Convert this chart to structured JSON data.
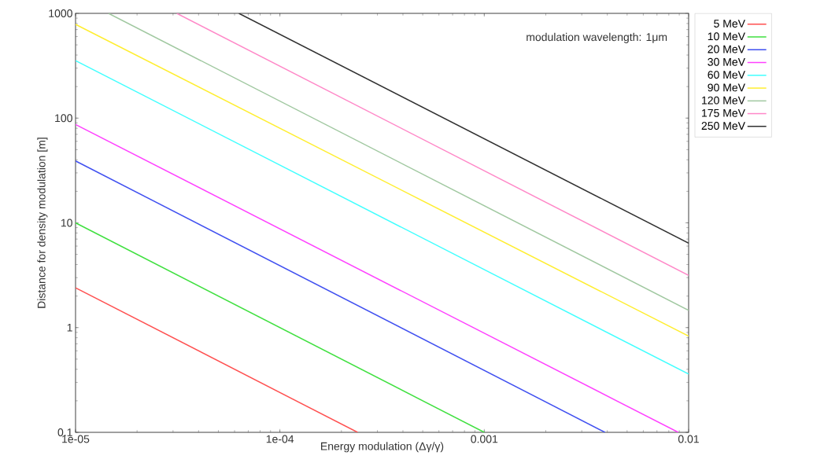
{
  "chart_data": {
    "type": "line",
    "xlabel": "Energy modulation (Δγ/γ)",
    "ylabel": "Distance for density modulation [m]",
    "annotations": [
      "modulation wavelength: 1μm"
    ],
    "log": "xy",
    "xlim": [
      1e-05,
      0.01
    ],
    "ylim": [
      0.1,
      1000
    ],
    "xticks": [
      {
        "value": 1e-05,
        "label": "1e-05"
      },
      {
        "value": 0.0001,
        "label": "1e-04"
      },
      {
        "value": 0.001,
        "label": "0.001"
      },
      {
        "value": 0.01,
        "label": "0.01"
      }
    ],
    "yticks": [
      0.1,
      1,
      10,
      100,
      1000
    ],
    "legend": "right",
    "series": [
      {
        "name": "5 MeV",
        "color": "#ff5050",
        "x": [
          1e-05,
          0.00024
        ],
        "values": [
          2.4,
          0.1
        ]
      },
      {
        "name": "10 MeV",
        "color": "#40e040",
        "x": [
          1e-05,
          0.001
        ],
        "values": [
          10,
          0.1
        ]
      },
      {
        "name": "20 MeV",
        "color": "#4050f0",
        "x": [
          1e-05,
          0.0039
        ],
        "values": [
          39,
          0.1
        ]
      },
      {
        "name": "30 MeV",
        "color": "#ff40ff",
        "x": [
          1e-05,
          0.0089
        ],
        "values": [
          87,
          0.1
        ]
      },
      {
        "name": "60 MeV",
        "color": "#40ffff",
        "x": [
          1e-05,
          0.01
        ],
        "values": [
          354,
          0.36
        ]
      },
      {
        "name": "90 MeV",
        "color": "#ffee30",
        "x": [
          1e-05,
          0.01
        ],
        "values": [
          785,
          0.83
        ]
      },
      {
        "name": "120 MeV",
        "color": "#a0c8a0",
        "x": [
          1.45e-05,
          0.01
        ],
        "values": [
          1000,
          1.46
        ]
      },
      {
        "name": "175 MeV",
        "color": "#ff88c8",
        "x": [
          3.13e-05,
          0.01
        ],
        "values": [
          1000,
          3.15
        ]
      },
      {
        "name": "250 MeV",
        "color": "#303030",
        "x": [
          6.3e-05,
          0.01
        ],
        "values": [
          1000,
          6.4
        ]
      }
    ]
  }
}
